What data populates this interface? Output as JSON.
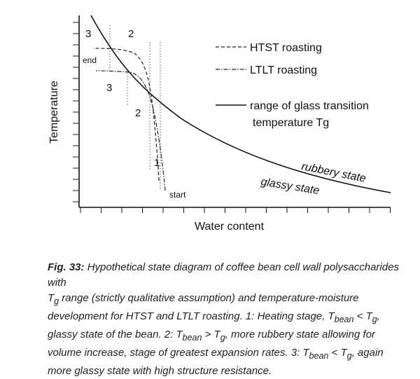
{
  "chart_data": {
    "type": "diagram",
    "xlabel": "Water content",
    "ylabel": "Temperature",
    "legend": [
      {
        "label": "HTST roasting",
        "style": "dashed"
      },
      {
        "label": "LTLT roasting",
        "style": "dash-dot"
      },
      {
        "label": "range of glass transition",
        "label2": "temperature Tg",
        "style": "solid"
      }
    ],
    "annotations": {
      "end": "end",
      "start": "start",
      "stage1": "1",
      "stage2_top": "2",
      "stage2_mid": "2",
      "stage3_top": "3",
      "stage3_mid": "3",
      "rubbery": "rubbery state",
      "glassy": "glassy state"
    }
  },
  "caption": {
    "label": "Fig. 33:",
    "line1": "Hypothetical state diagram of coffee bean cell wall polysaccharides with",
    "line2a": "T",
    "line2b": "g",
    "line2c": " range (strictly qualitative assumption) and temperature-moisture",
    "line3a": "development for HTST and LTLT roasting. 1: Heating stage, T",
    "line3b": "bean",
    "line3c": " < T",
    "line3d": "g",
    "line3e": ",",
    "line4a": "glassy state of the bean. 2: T",
    "line4b": "bean",
    "line4c": " > T",
    "line4d": "g",
    "line4e": ", more rubbery state allowing for",
    "line5": "volume increase, stage of greatest expansion rates. 3: T",
    "line5b": "bean",
    "line5c": " < T",
    "line5d": "g",
    "line5e": ", again",
    "line6": "more glassy state with high structure resistance."
  }
}
